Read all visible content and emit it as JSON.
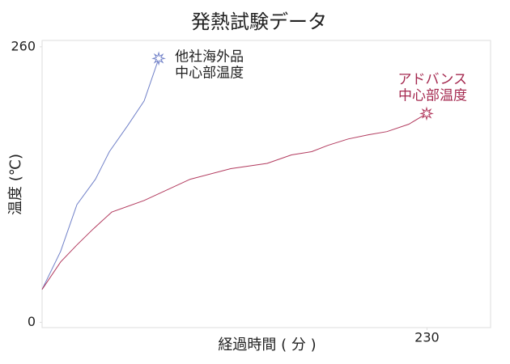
{
  "chart_data": {
    "type": "line",
    "title": "発熱試験データ",
    "x_label": "経過時間 ( 分 )",
    "y_label": "温度 (℃)",
    "xlim": [
      0,
      268
    ],
    "xticks": [
      230
    ],
    "ylim": [
      -5,
      266
    ],
    "yticks": [
      0,
      260
    ],
    "series": [
      {
        "name": [
          "他社海外品",
          "中心部温度"
        ],
        "color": "#7080c8",
        "label_color": "#222222",
        "x": [
          0,
          11.1,
          20.8,
          31.9,
          40.2,
          51.3,
          61,
          69.7
        ],
        "values": [
          31,
          67,
          111,
          135,
          161,
          186,
          209,
          249
        ]
      },
      {
        "name": [
          "アドバンス",
          "中心部温度"
        ],
        "color": "#b23a5e",
        "label_color": "#a52a50",
        "x": [
          0,
          11.1,
          20.8,
          30.5,
          41.6,
          61,
          88.5,
          112.7,
          134.5,
          149,
          161.1,
          170.8,
          182.9,
          195,
          206.1,
          219.2,
          229.8
        ],
        "values": [
          31,
          57,
          73,
          88,
          104,
          115,
          135,
          145,
          150,
          158,
          161,
          167,
          173,
          177,
          180,
          187,
          197
        ]
      }
    ]
  }
}
